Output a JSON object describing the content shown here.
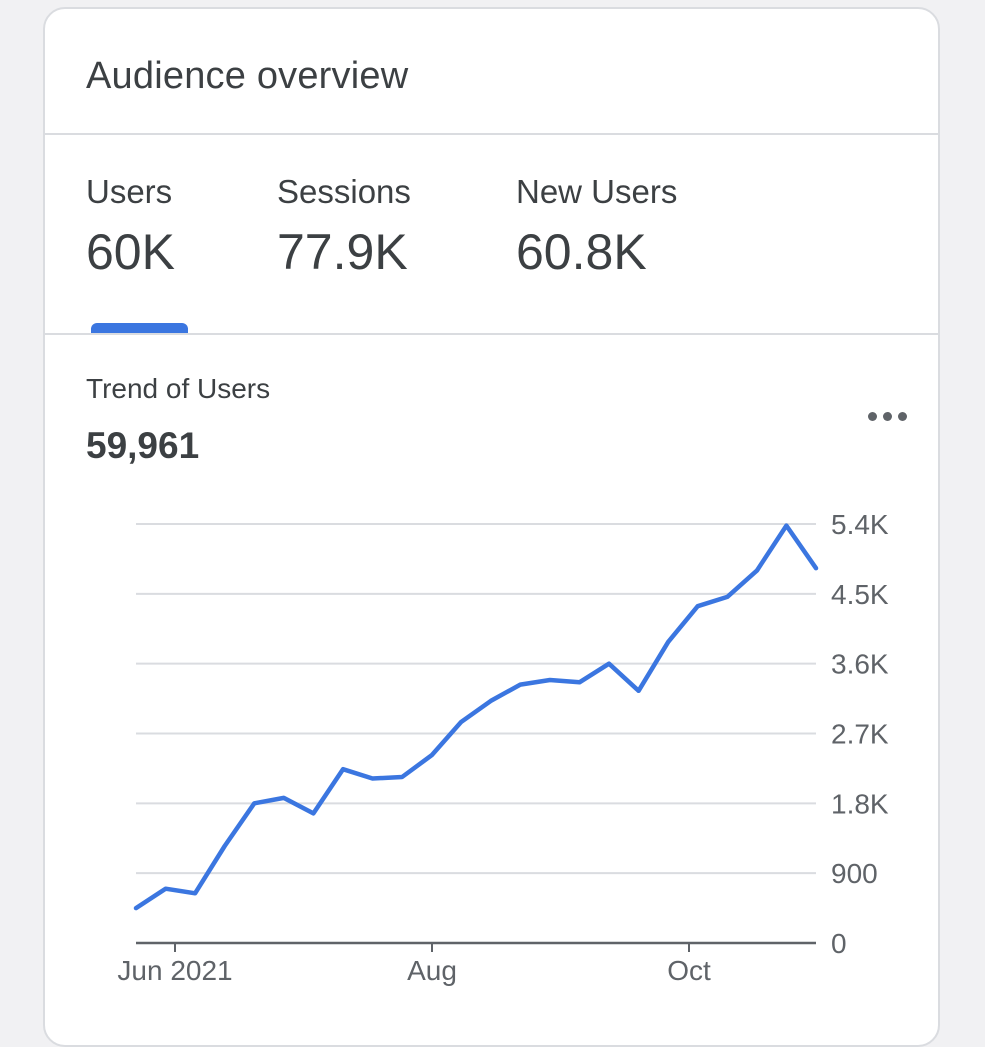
{
  "card": {
    "title": "Audience overview"
  },
  "metrics": [
    {
      "label": "Users",
      "value": "60K"
    },
    {
      "label": "Sessions",
      "value": "77.9K"
    },
    {
      "label": "New Users",
      "value": "60.8K"
    }
  ],
  "active_metric": "Users",
  "trend": {
    "title": "Trend of Users",
    "value": "59,961"
  },
  "colors": {
    "accent": "#3b76e0",
    "text": "#3c4043",
    "gridline": "#dadce0",
    "axis": "#5f6368"
  },
  "icons": {
    "more": "more-horizontal-icon"
  },
  "chart_data": {
    "type": "line",
    "title": "Trend of Users",
    "xlabel": "",
    "ylabel": "",
    "grid": true,
    "y_axis_position": "right",
    "x_tick_labels": [
      "Jun 2021",
      "Aug",
      "Oct"
    ],
    "y_tick_labels": [
      "0",
      "900",
      "1.8K",
      "2.7K",
      "3.6K",
      "4.5K",
      "5.4K"
    ],
    "y_ticks": [
      0,
      900,
      1800,
      2700,
      3600,
      4500,
      5400
    ],
    "ylim": [
      0,
      5400
    ],
    "series": [
      {
        "values": [
          450,
          700,
          640,
          1250,
          1800,
          1870,
          1670,
          2240,
          2120,
          2140,
          2420,
          2850,
          3120,
          3330,
          3390,
          3360,
          3600,
          3250,
          3880,
          4340,
          4460,
          4800,
          5380,
          4830
        ]
      }
    ]
  }
}
